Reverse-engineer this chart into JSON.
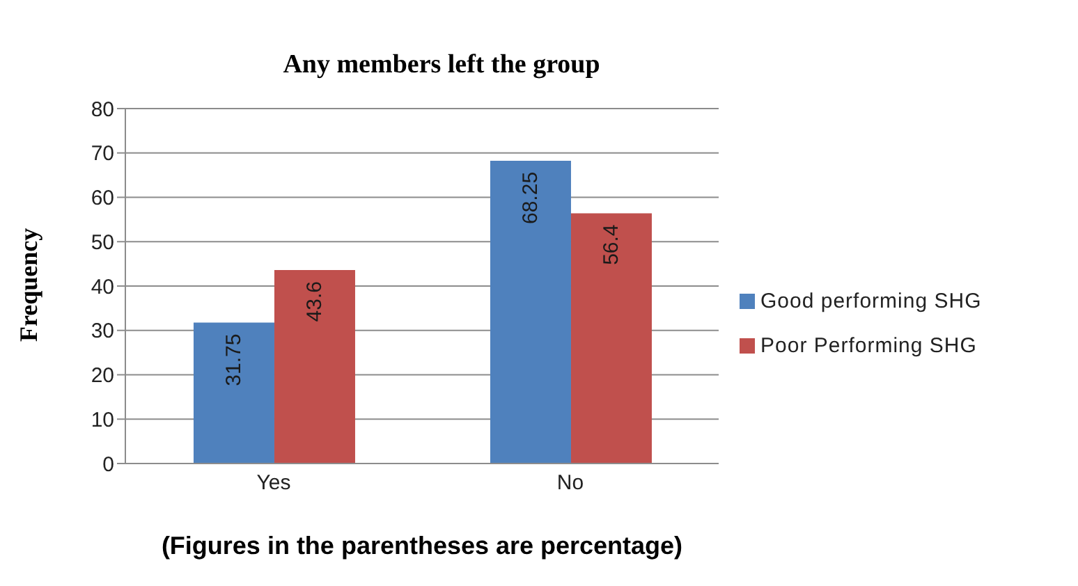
{
  "chart_data": {
    "type": "bar",
    "title": "Any members  left the group",
    "xlabel": "(Figures in the parentheses are percentage)",
    "ylabel": "Frequency",
    "categories": [
      "Yes",
      "No"
    ],
    "series": [
      {
        "name": "Good performing SHG",
        "color": "#4f81bd",
        "values": [
          31.75,
          68.25
        ]
      },
      {
        "name": "Poor Performing SHG",
        "color": "#c0504d",
        "values": [
          43.6,
          56.4
        ]
      }
    ],
    "ylim": [
      0,
      80
    ],
    "yticks": [
      0,
      10,
      20,
      30,
      40,
      50,
      60,
      70,
      80
    ],
    "grid": "y",
    "legend": "right",
    "data_labels": true
  }
}
